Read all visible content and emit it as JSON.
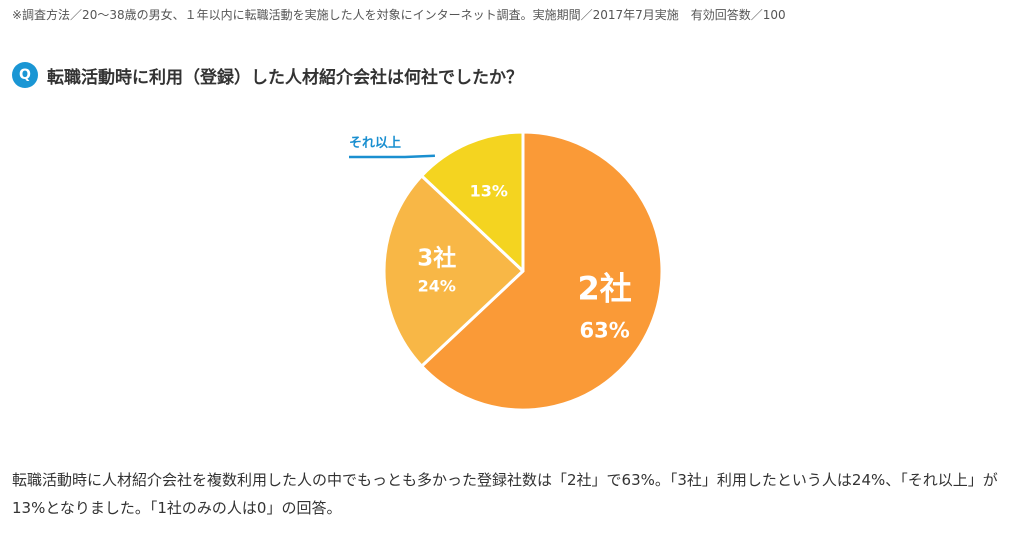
{
  "note": "※調査方法／20～38歳の男女、１年以内に転職活動を実施した人を対象にインターネット調査。実施期間／2017年7月実施　有効回答数／100",
  "question": {
    "badge": "Q",
    "text": "転職活動時に利用（登録）した人材紹介会社は何社でしたか？"
  },
  "chart_data": {
    "type": "pie",
    "unit": "%",
    "slices": [
      {
        "label": "2社",
        "value": 63,
        "value_label": "63%",
        "color": "#fa9a37"
      },
      {
        "label": "3社",
        "value": 24,
        "value_label": "24%",
        "color": "#f8b746"
      },
      {
        "label": "それ以上",
        "value": 13,
        "value_label": "13%",
        "color": "#f4d420"
      }
    ],
    "callout_color": "#1a8fd0"
  },
  "description": "転職活動時に人材紹介会社を複数利用した人の中でもっとも多かった登録社数は「2社」で63%。「3社」利用したという人は24%、「それ以上」が13%となりました。「1社のみの人は0」の回答。"
}
